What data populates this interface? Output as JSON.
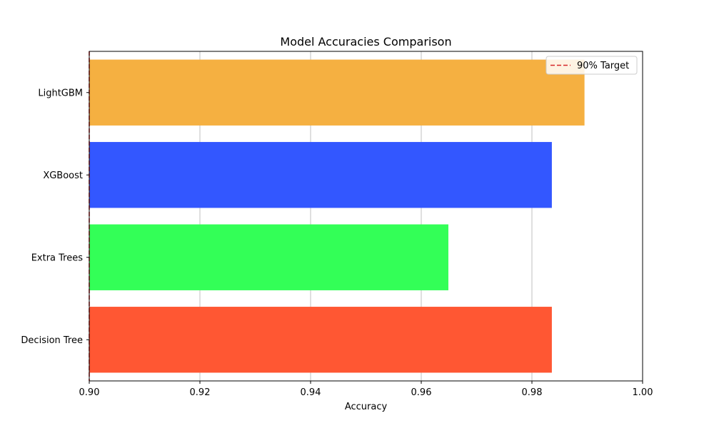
{
  "chart_data": {
    "type": "bar",
    "orientation": "horizontal",
    "title": "Model Accuracies Comparison",
    "xlabel": "Accuracy",
    "ylabel": "",
    "xlim": [
      0.9,
      1.0
    ],
    "xticks": [
      "0.90",
      "0.92",
      "0.94",
      "0.96",
      "0.98",
      "1.00"
    ],
    "categories": [
      "Decision Tree",
      "Extra Trees",
      "XGBoost",
      "LightGBM"
    ],
    "values": [
      0.9836,
      0.9649,
      0.9836,
      0.9895
    ],
    "colors": [
      "#ff5733",
      "#33ff57",
      "#3357ff",
      "#f5b041"
    ],
    "grid": "x",
    "legend": {
      "placement": "top-right",
      "entries": [
        {
          "label": "90% Target",
          "style": "dashed-line",
          "color": "#d62728",
          "value": 0.9
        }
      ]
    }
  }
}
